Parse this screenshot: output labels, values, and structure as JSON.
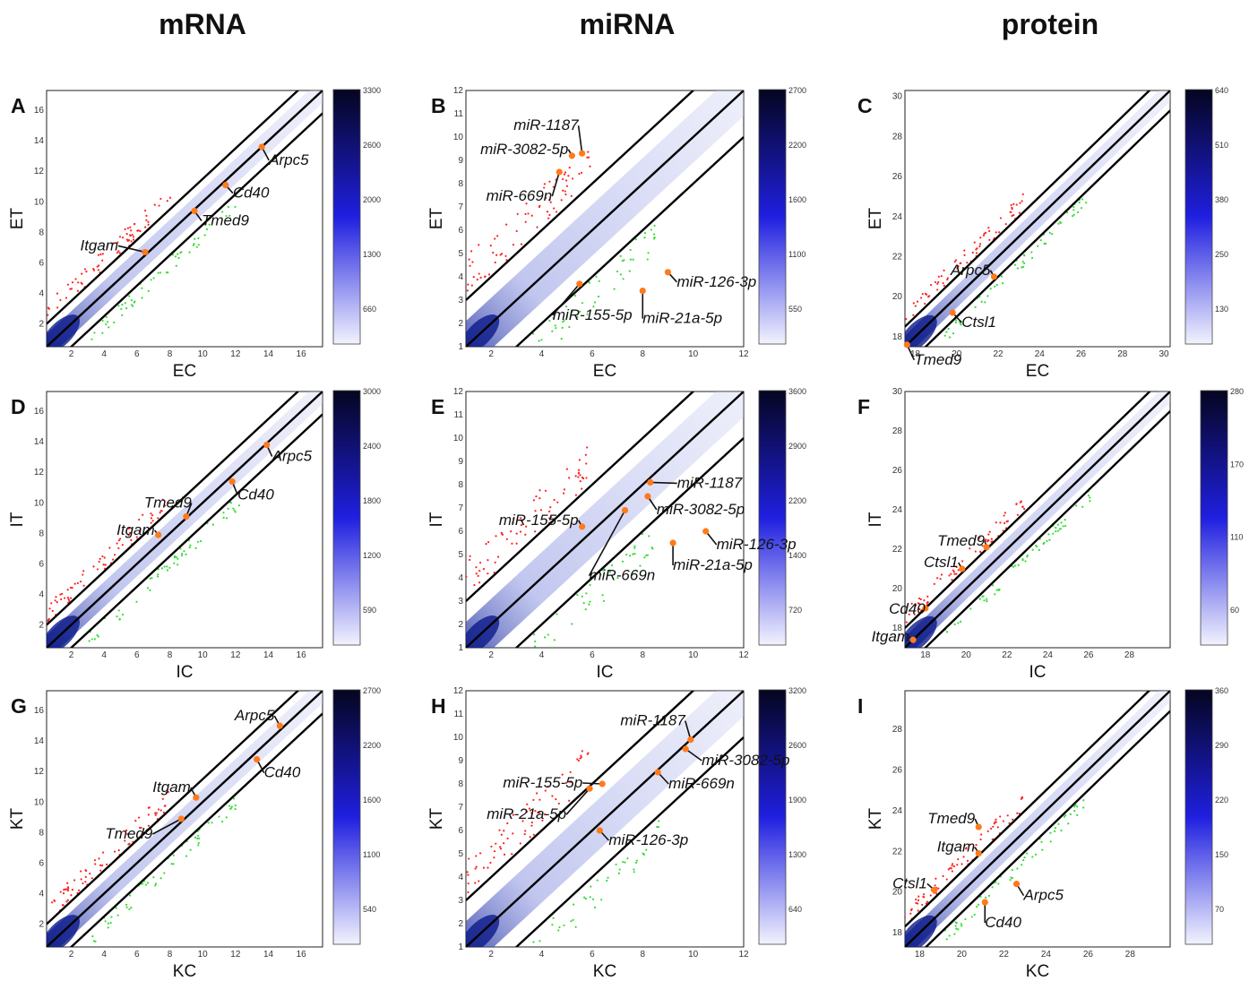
{
  "column_titles": [
    "mRNA",
    "miRNA",
    "protein"
  ],
  "colors": {
    "density_low": "#eef0fb",
    "density_high": "#0a0a40",
    "up": "#ff2020",
    "down": "#33dd33",
    "highlight": "#ff7a1a",
    "threshold_line": "#000000"
  },
  "chart_data": [
    {
      "panel": "A",
      "type": "scatter",
      "column": "mRNA",
      "xlabel": "EC",
      "ylabel": "ET",
      "xlim": [
        0.5,
        17.3
      ],
      "ylim": [
        0.5,
        17.3
      ],
      "xticks": [
        2,
        4,
        6,
        8,
        10,
        12,
        14,
        16
      ],
      "yticks": [
        2,
        4,
        6,
        8,
        10,
        12,
        14,
        16
      ],
      "fold_offset": 1.5,
      "colorbar": {
        "ticks": [
          "3300",
          "2600",
          "2000",
          "1300",
          "660"
        ]
      },
      "labeled_points": [
        {
          "name": "Itgam",
          "x": 6.5,
          "y": 6.7
        },
        {
          "name": "Tmed9",
          "x": 9.5,
          "y": 9.4
        },
        {
          "name": "Cd40",
          "x": 11.4,
          "y": 11.1
        },
        {
          "name": "Arpc5",
          "x": 13.6,
          "y": 13.6
        }
      ]
    },
    {
      "panel": "B",
      "type": "scatter",
      "column": "miRNA",
      "xlabel": "EC",
      "ylabel": "ET",
      "xlim": [
        1,
        12
      ],
      "ylim": [
        1,
        12
      ],
      "xticks": [
        2,
        4,
        6,
        8,
        10,
        12
      ],
      "yticks": [
        1,
        2,
        3,
        4,
        5,
        6,
        7,
        8,
        9,
        10,
        11,
        12
      ],
      "fold_offset": 2,
      "colorbar": {
        "ticks": [
          "2700",
          "2200",
          "1600",
          "1100",
          "550"
        ]
      },
      "labeled_points": [
        {
          "name": "miR-1187",
          "x": 5.6,
          "y": 9.3
        },
        {
          "name": "miR-3082-5p",
          "x": 5.2,
          "y": 9.2
        },
        {
          "name": "miR-669n",
          "x": 4.7,
          "y": 8.5
        },
        {
          "name": "miR-126-3p",
          "x": 9.0,
          "y": 4.2
        },
        {
          "name": "miR-155-5p",
          "x": 5.5,
          "y": 3.7
        },
        {
          "name": "miR-21a-5p",
          "x": 8.0,
          "y": 3.4
        }
      ]
    },
    {
      "panel": "C",
      "type": "scatter",
      "column": "protein",
      "xlabel": "EC",
      "ylabel": "ET",
      "xlim": [
        17.5,
        30.3
      ],
      "ylim": [
        17.5,
        30.3
      ],
      "xticks": [
        18,
        20,
        22,
        24,
        26,
        28,
        30
      ],
      "yticks": [
        18,
        20,
        22,
        24,
        26,
        28,
        30
      ],
      "fold_offset": 1,
      "colorbar": {
        "ticks": [
          "640",
          "510",
          "380",
          "250",
          "130"
        ]
      },
      "labeled_points": [
        {
          "name": "Arpc5",
          "x": 21.8,
          "y": 21.0
        },
        {
          "name": "Ctsl1",
          "x": 19.8,
          "y": 19.2
        },
        {
          "name": "Tmed9",
          "x": 17.6,
          "y": 17.6
        }
      ]
    },
    {
      "panel": "D",
      "type": "scatter",
      "column": "mRNA",
      "xlabel": "IC",
      "ylabel": "IT",
      "xlim": [
        0.5,
        17.3
      ],
      "ylim": [
        0.5,
        17.3
      ],
      "xticks": [
        2,
        4,
        6,
        8,
        10,
        12,
        14,
        16
      ],
      "yticks": [
        2,
        4,
        6,
        8,
        10,
        12,
        14,
        16
      ],
      "fold_offset": 1.5,
      "colorbar": {
        "ticks": [
          "3000",
          "2400",
          "1800",
          "1200",
          "590"
        ]
      },
      "labeled_points": [
        {
          "name": "Tmed9",
          "x": 9.0,
          "y": 9.1
        },
        {
          "name": "Itgam",
          "x": 7.3,
          "y": 7.9
        },
        {
          "name": "Cd40",
          "x": 11.8,
          "y": 11.4
        },
        {
          "name": "Arpc5",
          "x": 13.9,
          "y": 13.8
        }
      ]
    },
    {
      "panel": "E",
      "type": "scatter",
      "column": "miRNA",
      "xlabel": "IC",
      "ylabel": "IT",
      "xlim": [
        1,
        12
      ],
      "ylim": [
        1,
        12
      ],
      "xticks": [
        2,
        4,
        6,
        8,
        10,
        12
      ],
      "yticks": [
        1,
        2,
        3,
        4,
        5,
        6,
        7,
        8,
        9,
        10,
        11,
        12
      ],
      "fold_offset": 2,
      "colorbar": {
        "ticks": [
          "3600",
          "2900",
          "2200",
          "1400",
          "720"
        ]
      },
      "labeled_points": [
        {
          "name": "miR-1187",
          "x": 8.3,
          "y": 8.1
        },
        {
          "name": "miR-3082-5p",
          "x": 8.2,
          "y": 7.5
        },
        {
          "name": "miR-155-5p",
          "x": 5.6,
          "y": 6.2
        },
        {
          "name": "miR-669n",
          "x": 7.3,
          "y": 6.9
        },
        {
          "name": "miR-126-3p",
          "x": 10.5,
          "y": 6.0
        },
        {
          "name": "miR-21a-5p",
          "x": 9.2,
          "y": 5.5
        }
      ]
    },
    {
      "panel": "F",
      "type": "scatter",
      "column": "protein",
      "xlabel": "IC",
      "ylabel": "IT",
      "xlim": [
        17,
        30
      ],
      "ylim": [
        17,
        30
      ],
      "xticks": [
        18,
        20,
        22,
        24,
        26,
        28
      ],
      "yticks": [
        18,
        20,
        22,
        24,
        26,
        28,
        30
      ],
      "fold_offset": 1,
      "colorbar": {
        "ticks": [
          "280",
          "170",
          "110",
          "60"
        ]
      },
      "labeled_points": [
        {
          "name": "Tmed9",
          "x": 21.0,
          "y": 22.1
        },
        {
          "name": "Ctsl1",
          "x": 19.8,
          "y": 21.0
        },
        {
          "name": "Cd40",
          "x": 18.0,
          "y": 19.0
        },
        {
          "name": "Itgam",
          "x": 17.4,
          "y": 17.4
        }
      ]
    },
    {
      "panel": "G",
      "type": "scatter",
      "column": "mRNA",
      "xlabel": "KC",
      "ylabel": "KT",
      "xlim": [
        0.5,
        17.3
      ],
      "ylim": [
        0.5,
        17.3
      ],
      "xticks": [
        2,
        4,
        6,
        8,
        10,
        12,
        14,
        16
      ],
      "yticks": [
        2,
        4,
        6,
        8,
        10,
        12,
        14,
        16
      ],
      "fold_offset": 1.5,
      "colorbar": {
        "ticks": [
          "2700",
          "2200",
          "1600",
          "1100",
          "540"
        ]
      },
      "labeled_points": [
        {
          "name": "Arpc5",
          "x": 14.7,
          "y": 15.0
        },
        {
          "name": "Cd40",
          "x": 13.3,
          "y": 12.8
        },
        {
          "name": "Itgam",
          "x": 9.6,
          "y": 10.3
        },
        {
          "name": "Tmed9",
          "x": 8.7,
          "y": 8.9
        }
      ]
    },
    {
      "panel": "H",
      "type": "scatter",
      "column": "miRNA",
      "xlabel": "KC",
      "ylabel": "KT",
      "xlim": [
        1,
        12
      ],
      "ylim": [
        1,
        12
      ],
      "xticks": [
        2,
        4,
        6,
        8,
        10,
        12
      ],
      "yticks": [
        1,
        2,
        3,
        4,
        5,
        6,
        7,
        8,
        9,
        10,
        11,
        12
      ],
      "fold_offset": 2,
      "colorbar": {
        "ticks": [
          "3200",
          "2600",
          "1900",
          "1300",
          "640"
        ]
      },
      "labeled_points": [
        {
          "name": "miR-1187",
          "x": 9.9,
          "y": 9.9
        },
        {
          "name": "miR-3082-5p",
          "x": 9.7,
          "y": 9.5
        },
        {
          "name": "miR-669n",
          "x": 8.6,
          "y": 8.5
        },
        {
          "name": "miR-155-5p",
          "x": 6.4,
          "y": 8.0
        },
        {
          "name": "miR-21a-5p",
          "x": 5.9,
          "y": 7.8
        },
        {
          "name": "miR-126-3p",
          "x": 6.3,
          "y": 6.0
        }
      ]
    },
    {
      "panel": "I",
      "type": "scatter",
      "column": "protein",
      "xlabel": "KC",
      "ylabel": "KT",
      "xlim": [
        17.3,
        29.9
      ],
      "ylim": [
        17.3,
        29.9
      ],
      "xticks": [
        18,
        20,
        22,
        24,
        26,
        28
      ],
      "yticks": [
        18,
        20,
        22,
        24,
        26,
        28
      ],
      "fold_offset": 1,
      "colorbar": {
        "ticks": [
          "360",
          "290",
          "220",
          "150",
          "70"
        ]
      },
      "labeled_points": [
        {
          "name": "Tmed9",
          "x": 20.8,
          "y": 23.2
        },
        {
          "name": "Itgam",
          "x": 20.8,
          "y": 21.9
        },
        {
          "name": "Ctsl1",
          "x": 18.7,
          "y": 20.1
        },
        {
          "name": "Arpc5",
          "x": 22.6,
          "y": 20.4
        },
        {
          "name": "Cd40",
          "x": 21.1,
          "y": 19.5
        }
      ]
    }
  ]
}
